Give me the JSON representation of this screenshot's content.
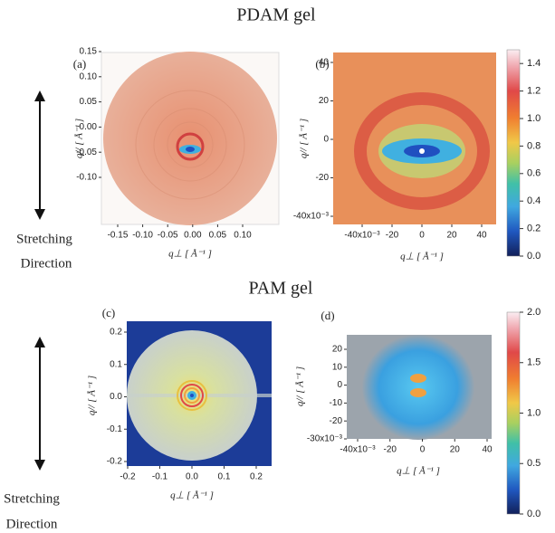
{
  "sections": [
    {
      "title": "PDAM gel",
      "stretching_label": [
        "Stretching",
        "Direction"
      ],
      "panels": [
        {
          "label": "(a)",
          "y_label": "q// [ Å⁻¹ ]",
          "x_label": "q⊥ [ Å⁻¹ ]",
          "yticks": [
            "0.15",
            "0.10",
            "0.05",
            "0.00",
            "-0.05",
            "-0.10"
          ],
          "xticks": [
            "-0.15",
            "-0.10",
            "-0.05",
            "0.00",
            "0.05",
            "0.10"
          ]
        },
        {
          "label": "(b)",
          "y_label": "q// [ Å⁻¹ ]",
          "x_label": "q⊥ [ Å⁻¹ ]",
          "yticks": [
            "40",
            "20",
            "0",
            "-20",
            "-40x10⁻³"
          ],
          "xticks": [
            "-40x10⁻³",
            "-20",
            "0",
            "20",
            "40"
          ]
        }
      ],
      "colorbar": {
        "range": [
          0,
          1.5
        ],
        "ticks": [
          {
            "value": 1.4,
            "label": "1.4"
          },
          {
            "value": 1.2,
            "label": "1.2"
          },
          {
            "value": 1,
            "label": "1.0"
          },
          {
            "value": 0.8,
            "label": "0.8"
          },
          {
            "value": 0.6,
            "label": "0.6"
          },
          {
            "value": 0.4,
            "label": "0.4"
          },
          {
            "value": 0.2,
            "label": "0.2"
          },
          {
            "value": 0,
            "label": "0.0"
          }
        ]
      }
    },
    {
      "title": "PAM gel",
      "stretching_label": [
        "Stretching",
        "Direction"
      ],
      "panels": [
        {
          "label": "(c)",
          "y_label": "q// [ Å⁻¹ ]",
          "x_label": "q⊥ [ Å⁻¹ ]",
          "yticks": [
            "0.2",
            "0.1",
            "0.0",
            "-0.1",
            "-0.2"
          ],
          "xticks": [
            "-0.2",
            "-0.1",
            "0.0",
            "0.1",
            "0.2"
          ]
        },
        {
          "label": "(d)",
          "y_label": "q// [ Å⁻¹ ]",
          "x_label": "q⊥ [ Å⁻¹ ]",
          "yticks": [
            "20",
            "10",
            "0",
            "-10",
            "-20",
            "-30x10⁻³"
          ],
          "xticks": [
            "-40x10⁻³",
            "-20",
            "0",
            "20",
            "40"
          ]
        }
      ],
      "colorbar": {
        "range": [
          0,
          2
        ],
        "ticks": [
          {
            "value": 2,
            "label": "2.0"
          },
          {
            "value": 1.5,
            "label": "1.5"
          },
          {
            "value": 1,
            "label": "1.0"
          },
          {
            "value": 0.5,
            "label": "0.5"
          },
          {
            "value": 0,
            "label": "0.0"
          }
        ]
      }
    }
  ]
}
